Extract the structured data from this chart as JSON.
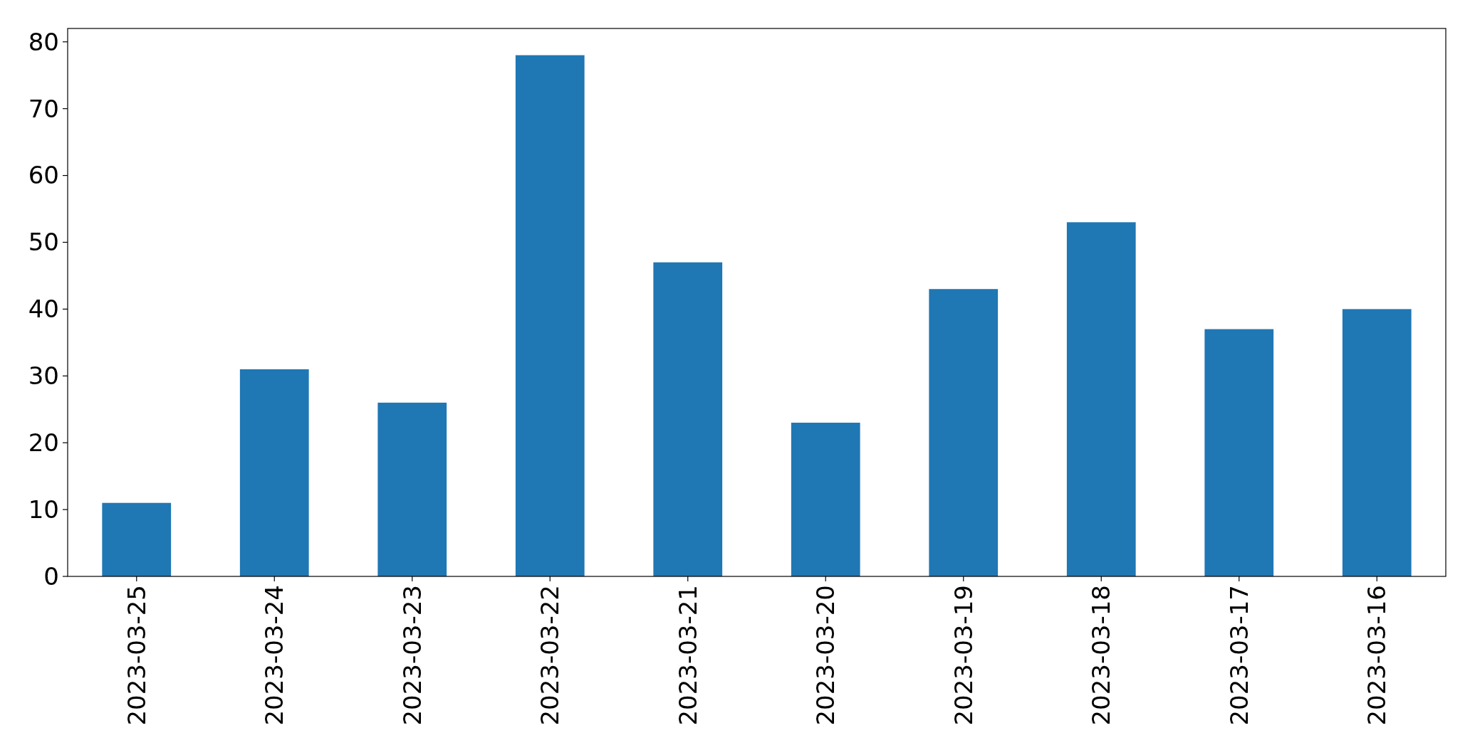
{
  "chart_data": {
    "type": "bar",
    "categories": [
      "2023-03-25",
      "2023-03-24",
      "2023-03-23",
      "2023-03-22",
      "2023-03-21",
      "2023-03-20",
      "2023-03-19",
      "2023-03-18",
      "2023-03-17",
      "2023-03-16"
    ],
    "values": [
      11,
      31,
      26,
      78,
      47,
      23,
      43,
      53,
      37,
      40
    ],
    "color": "#1f77b4",
    "ylim": [
      0,
      82
    ],
    "yticks": [
      0,
      10,
      20,
      30,
      40,
      50,
      60,
      70,
      80
    ],
    "grid": false
  }
}
